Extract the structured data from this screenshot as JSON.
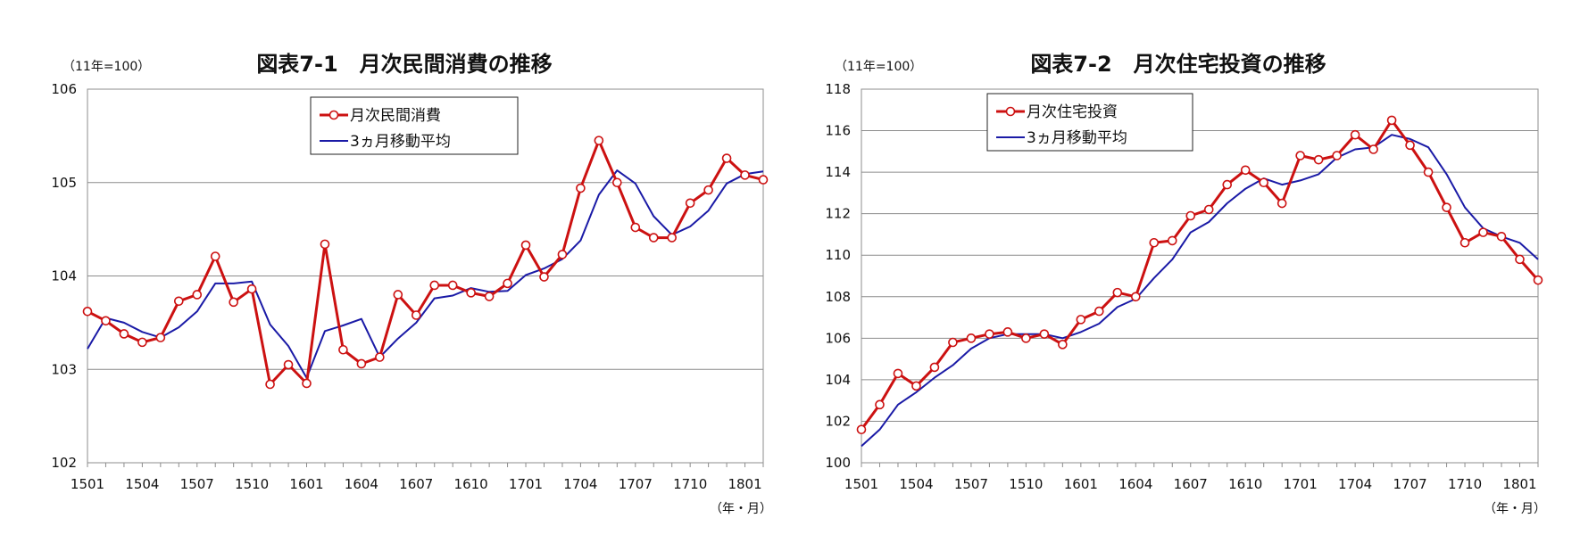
{
  "chart_data": [
    {
      "type": "line",
      "title": "図表7-1　月次民間消費の推移",
      "unit_label": "（11年=100）",
      "xlabel": "（年・月）",
      "ylabel": "",
      "ylim": [
        102,
        106
      ],
      "yticks": [
        102,
        103,
        104,
        105,
        106
      ],
      "xtick_labels": [
        "1501",
        "1504",
        "1507",
        "1510",
        "1601",
        "1604",
        "1607",
        "1610",
        "1701",
        "1704",
        "1707",
        "1710",
        "1801"
      ],
      "grid": "horizontal",
      "legend_placement": "top-center",
      "x_count": 38,
      "series": [
        {
          "name": "月次民間消費",
          "color": "#cc1111",
          "marker": "circle",
          "values": [
            103.62,
            103.52,
            103.38,
            103.29,
            103.34,
            103.73,
            103.8,
            104.21,
            103.72,
            103.86,
            102.84,
            103.05,
            102.85,
            104.34,
            103.21,
            103.06,
            103.13,
            103.8,
            103.58,
            103.9,
            103.9,
            103.82,
            103.78,
            103.92,
            104.33,
            103.99,
            104.23,
            104.94,
            105.45,
            105.0,
            104.52,
            104.41,
            104.41,
            104.78,
            104.92,
            105.26,
            105.08,
            105.03
          ]
        },
        {
          "name": "3ヵ月移動平均",
          "color": "#1a1aa6",
          "marker": "none",
          "values": [
            103.22,
            103.55,
            103.5,
            103.4,
            103.34,
            103.45,
            103.62,
            103.92,
            103.92,
            103.94,
            103.48,
            103.25,
            102.91,
            103.41,
            103.47,
            103.54,
            103.13,
            103.33,
            103.5,
            103.76,
            103.79,
            103.87,
            103.83,
            103.84,
            104.01,
            104.08,
            104.18,
            104.38,
            104.87,
            105.13,
            104.99,
            104.64,
            104.44,
            104.53,
            104.7,
            104.99,
            105.09,
            105.12
          ]
        }
      ]
    },
    {
      "type": "line",
      "title": "図表7-2　月次住宅投資の推移",
      "unit_label": "（11年=100）",
      "xlabel": "（年・月）",
      "ylabel": "",
      "ylim": [
        100,
        118
      ],
      "yticks": [
        100,
        102,
        104,
        106,
        108,
        110,
        112,
        114,
        116,
        118
      ],
      "xtick_labels": [
        "1501",
        "1504",
        "1507",
        "1510",
        "1601",
        "1604",
        "1607",
        "1610",
        "1701",
        "1704",
        "1707",
        "1710",
        "1801"
      ],
      "grid": "horizontal",
      "legend_placement": "top-left",
      "x_count": 38,
      "series": [
        {
          "name": "月次住宅投資",
          "color": "#cc1111",
          "marker": "circle",
          "values": [
            101.6,
            102.8,
            104.3,
            103.7,
            104.6,
            105.8,
            106.0,
            106.2,
            106.3,
            106.0,
            106.2,
            105.7,
            106.9,
            107.3,
            108.2,
            108.0,
            110.6,
            110.7,
            111.9,
            112.2,
            113.4,
            114.1,
            113.5,
            112.5,
            114.8,
            114.6,
            114.8,
            115.8,
            115.1,
            116.5,
            115.3,
            114.0,
            112.3,
            110.6,
            111.1,
            110.9,
            109.8,
            108.8
          ]
        },
        {
          "name": "3ヵ月移動平均",
          "color": "#1a1aa6",
          "marker": "none",
          "values": [
            100.8,
            101.6,
            102.8,
            103.4,
            104.1,
            104.7,
            105.5,
            106.0,
            106.2,
            106.2,
            106.2,
            106.0,
            106.3,
            106.7,
            107.5,
            107.9,
            108.9,
            109.8,
            111.1,
            111.6,
            112.5,
            113.2,
            113.7,
            113.4,
            113.6,
            113.9,
            114.7,
            115.1,
            115.2,
            115.8,
            115.6,
            115.2,
            113.9,
            112.3,
            111.3,
            110.9,
            110.6,
            109.8
          ]
        }
      ]
    }
  ]
}
